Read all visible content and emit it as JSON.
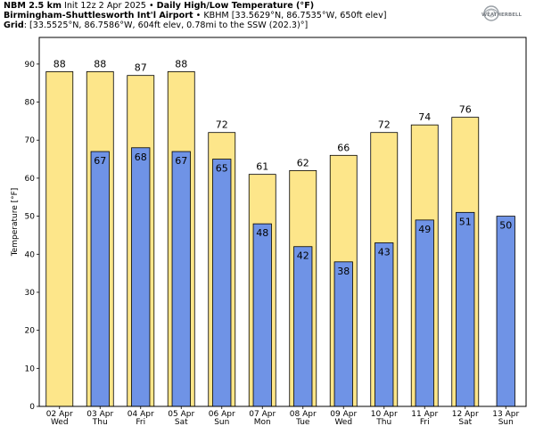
{
  "header": {
    "line1_bold": "NBM 2.5 km",
    "line1_text": " Init 12z 2 Apr 2025 • ",
    "line1_bold2": "Daily High/Low Temperature (°F)",
    "line2_bold": "Birmingham-Shuttlesworth Int'l Airport",
    "line2_text": " • KBHM [33.5629°N, 86.7535°W, 650ft elev]",
    "line3_bold": "Grid",
    "line3_text": ": [33.5525°N, 86.7586°W, 604ft elev, 0.78mi to the SSW (202.3)°]"
  },
  "logo": {
    "text": "WEATHERBELL"
  },
  "colors": {
    "high": "#fde68a",
    "low": "#6f93e6",
    "edge": "#000000"
  },
  "chart_data": {
    "type": "bar",
    "categories": [
      "02 Apr",
      "03 Apr",
      "04 Apr",
      "05 Apr",
      "06 Apr",
      "07 Apr",
      "08 Apr",
      "09 Apr",
      "10 Apr",
      "11 Apr",
      "12 Apr",
      "13 Apr"
    ],
    "weekdays": [
      "Wed",
      "Thu",
      "Fri",
      "Sat",
      "Sun",
      "Mon",
      "Tue",
      "Wed",
      "Thu",
      "Fri",
      "Sat",
      "Sun"
    ],
    "series": [
      {
        "values": [
          88,
          88,
          87,
          88,
          72,
          61,
          62,
          66,
          72,
          74,
          76,
          null
        ]
      },
      {
        "values": [
          null,
          67,
          68,
          67,
          65,
          48,
          42,
          38,
          43,
          49,
          51,
          50
        ]
      }
    ],
    "ylabel": "Temperature [°F]",
    "ylim": [
      0,
      97
    ],
    "yticks": [
      0,
      10,
      20,
      30,
      40,
      50,
      60,
      70,
      80,
      90
    ],
    "grid": false
  }
}
